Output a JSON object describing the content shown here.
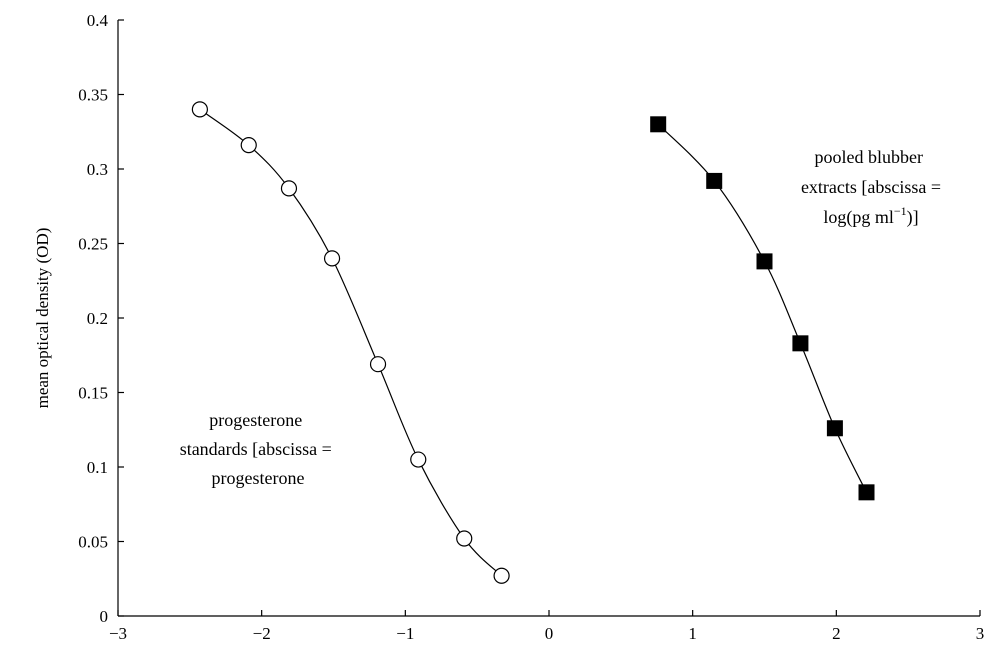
{
  "chart_data": {
    "type": "scatter",
    "title": "",
    "xlabel": "",
    "ylabel": "mean optical density (OD)",
    "xlim": [
      -3,
      3
    ],
    "ylim": [
      0,
      0.4
    ],
    "x_ticks": [
      "−3",
      "−2",
      "−1",
      "0",
      "1",
      "2",
      "3"
    ],
    "y_ticks": [
      "0",
      "0.05",
      "0.1",
      "0.15",
      "0.2",
      "0.25",
      "0.3",
      "0.35",
      "0.4"
    ],
    "grid": false,
    "series": [
      {
        "marker": "open-circle",
        "x": [
          -2.43,
          -2.09,
          -1.81,
          -1.51,
          -1.19,
          -0.91,
          -0.59,
          -0.33
        ],
        "y": [
          0.34,
          0.316,
          0.287,
          0.24,
          0.169,
          0.105,
          0.052,
          0.027
        ]
      },
      {
        "marker": "filled-square",
        "x": [
          0.76,
          1.15,
          1.5,
          1.75,
          1.99,
          2.21
        ],
        "y": [
          0.33,
          0.292,
          0.238,
          0.183,
          0.126,
          0.083
        ]
      }
    ],
    "annotations": {
      "progesterone": [
        "progesterone",
        "standards [abscissa =",
        "progesterone"
      ],
      "blubber": [
        "pooled blubber",
        "extracts [abscissa =",
        "log(pg ml",
        "−1",
        ")]"
      ]
    }
  }
}
